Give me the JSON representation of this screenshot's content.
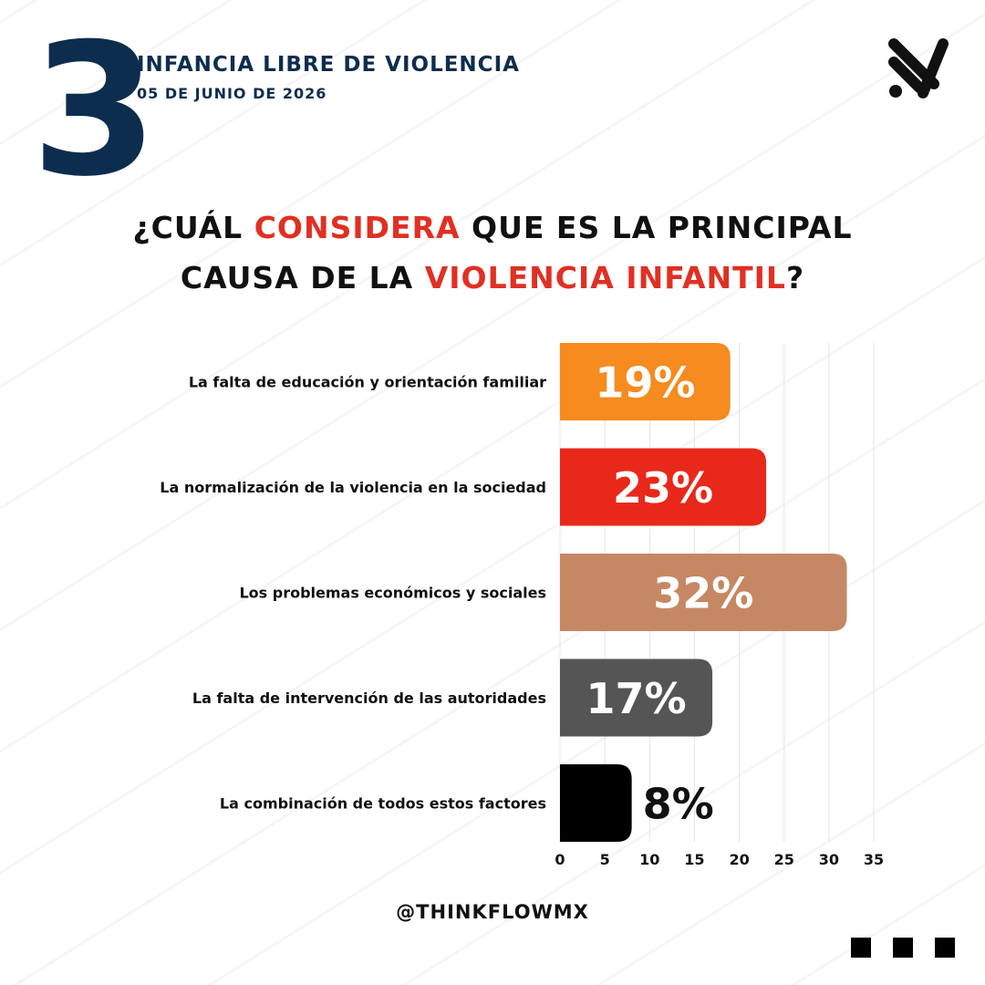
{
  "header": {
    "number": "3",
    "title": "INFANCIA LIBRE DE VIOLENCIA",
    "date": "05 DE JUNIO DE 2026"
  },
  "question": {
    "line1_part1": "¿CUÁL ",
    "line1_highlight": "CONSIDERA",
    "line1_part2": " QUE ES LA PRINCIPAL",
    "line2_part1": "CAUSA DE LA ",
    "line2_highlight": "VIOLENCIA INFANTIL",
    "line2_part2": "?"
  },
  "colors": {
    "navy": "#0d2d4f",
    "accent_red": "#e03023"
  },
  "chart_data": {
    "type": "bar",
    "orientation": "horizontal",
    "categories": [
      "La falta de educación y orientación familiar",
      "La normalización de la violencia en la sociedad",
      "Los problemas económicos y sociales",
      "La falta de intervención de las autoridades",
      "La combinación de todos estos factores"
    ],
    "values": [
      19,
      23,
      32,
      17,
      8
    ],
    "labels": [
      "19%",
      "23%",
      "32%",
      "17%",
      "8%"
    ],
    "colors": [
      "#f68b1f",
      "#e8281b",
      "#c68864",
      "#555555",
      "#000000"
    ],
    "label_inside": [
      true,
      true,
      true,
      true,
      false
    ],
    "xlim": [
      0,
      35
    ],
    "ticks": [
      0,
      5,
      10,
      15,
      20,
      25,
      30,
      35
    ],
    "grid": true
  },
  "footer": {
    "handle": "@THINKFLOWMX"
  }
}
